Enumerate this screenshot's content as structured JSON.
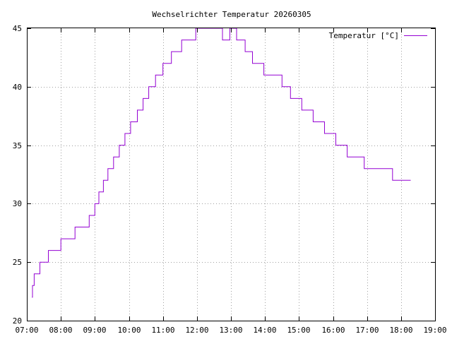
{
  "chart_data": {
    "type": "line",
    "title": "Wechselrichter Temperatur 20260305",
    "xlabel": "",
    "ylabel": "",
    "ylim": [
      20,
      45
    ],
    "yticks": [
      20,
      25,
      30,
      35,
      40,
      45
    ],
    "xlim": [
      "07:00",
      "19:00"
    ],
    "xticks": [
      "07:00",
      "08:00",
      "09:00",
      "10:00",
      "11:00",
      "12:00",
      "13:00",
      "14:00",
      "15:00",
      "16:00",
      "17:00",
      "18:00",
      "19:00"
    ],
    "grid": true,
    "legend_position": "top-right",
    "step": true,
    "series": [
      {
        "name": "Temperatur [°C]",
        "color": "#9400d3",
        "points": [
          [
            "07:09",
            22
          ],
          [
            "07:10",
            23
          ],
          [
            "07:13",
            24
          ],
          [
            "07:23",
            25
          ],
          [
            "07:38",
            26
          ],
          [
            "08:00",
            27
          ],
          [
            "08:25",
            28
          ],
          [
            "08:50",
            29
          ],
          [
            "09:00",
            30
          ],
          [
            "09:07",
            31
          ],
          [
            "09:15",
            32
          ],
          [
            "09:23",
            33
          ],
          [
            "09:33",
            34
          ],
          [
            "09:43",
            35
          ],
          [
            "09:53",
            36
          ],
          [
            "10:03",
            37
          ],
          [
            "10:15",
            38
          ],
          [
            "10:25",
            39
          ],
          [
            "10:35",
            40
          ],
          [
            "10:47",
            41
          ],
          [
            "11:00",
            42
          ],
          [
            "11:15",
            43
          ],
          [
            "11:33",
            44
          ],
          [
            "11:58",
            45
          ],
          [
            "12:45",
            44
          ],
          [
            "12:58",
            45
          ],
          [
            "13:10",
            44
          ],
          [
            "13:25",
            43
          ],
          [
            "13:38",
            42
          ],
          [
            "13:58",
            41
          ],
          [
            "14:30",
            40
          ],
          [
            "14:45",
            39
          ],
          [
            "15:05",
            38
          ],
          [
            "15:25",
            37
          ],
          [
            "15:45",
            36
          ],
          [
            "16:05",
            35
          ],
          [
            "16:25",
            34
          ],
          [
            "16:55",
            33
          ],
          [
            "17:45",
            32
          ],
          [
            "18:17",
            32
          ]
        ]
      }
    ]
  }
}
